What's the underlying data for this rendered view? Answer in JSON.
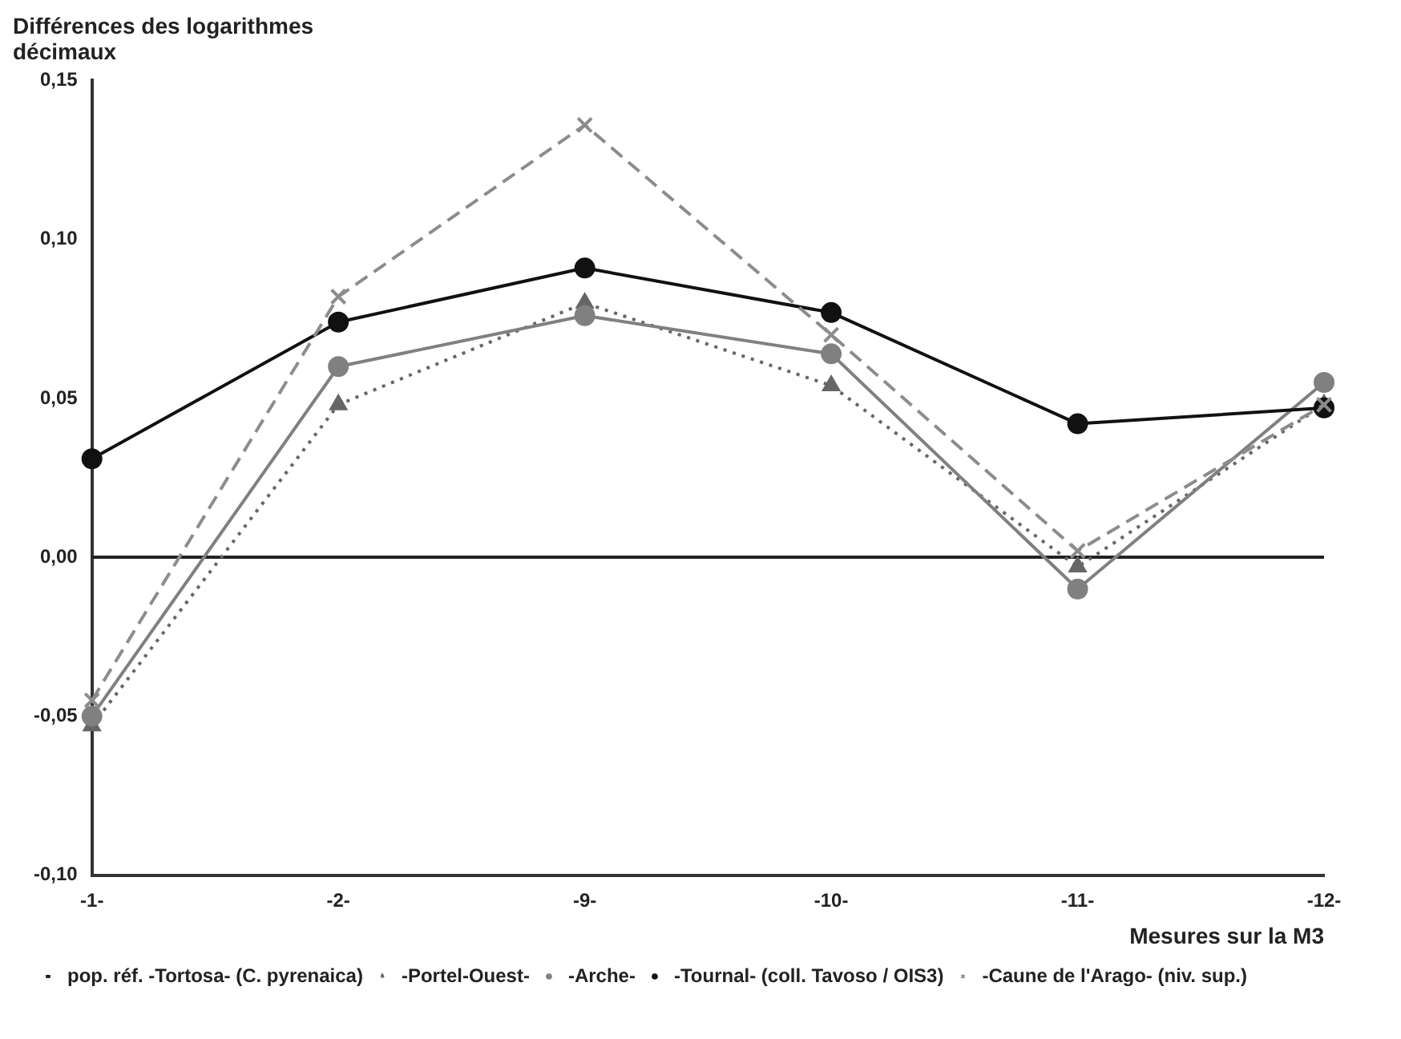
{
  "chart_data": {
    "type": "line",
    "ylabel": "Différences des logarithmes décimaux",
    "xlabel": "Mesures sur la M3",
    "categories": [
      "-1-",
      "-2-",
      "-9-",
      "-10-",
      "-11-",
      "-12-"
    ],
    "series": [
      {
        "name": "pop. réf. -Tortosa- (C. pyrenaica)",
        "color": "#222222",
        "values": [
          0,
          0,
          0,
          0,
          0,
          0
        ],
        "marker": "none",
        "line_style": "solid"
      },
      {
        "name": "-Portel-Ouest-",
        "color": "#666666",
        "values": [
          -0.053,
          0.048,
          0.08,
          0.054,
          -0.003,
          0.048
        ],
        "marker": "triangle",
        "line_style": "dotted"
      },
      {
        "name": "-Arche-",
        "color": "#808080",
        "values": [
          -0.05,
          0.06,
          0.076,
          0.064,
          -0.01,
          0.055
        ],
        "marker": "circle",
        "line_style": "solid"
      },
      {
        "name": "-Tournal- (coll. Tavoso / OIS3)",
        "color": "#111111",
        "values": [
          0.031,
          0.074,
          0.091,
          0.077,
          0.042,
          0.047
        ],
        "marker": "circle",
        "line_style": "solid"
      },
      {
        "name": "-Caune de l'Arago- (niv. sup.)",
        "color": "#8c8c8c",
        "values": [
          -0.045,
          0.082,
          0.136,
          0.07,
          0.002,
          0.048
        ],
        "marker": "cross",
        "line_style": "dashed"
      }
    ],
    "ylim": [
      -0.1,
      0.15
    ],
    "yticks": [
      {
        "value": -0.1,
        "label": "-0,10"
      },
      {
        "value": -0.05,
        "label": "-0,05"
      },
      {
        "value": 0,
        "label": "0,00"
      },
      {
        "value": 0.05,
        "label": "0,05"
      },
      {
        "value": 0.1,
        "label": "0,10"
      },
      {
        "value": 0.15,
        "label": "0,15"
      }
    ],
    "grid": false,
    "legend": "bottom left"
  }
}
